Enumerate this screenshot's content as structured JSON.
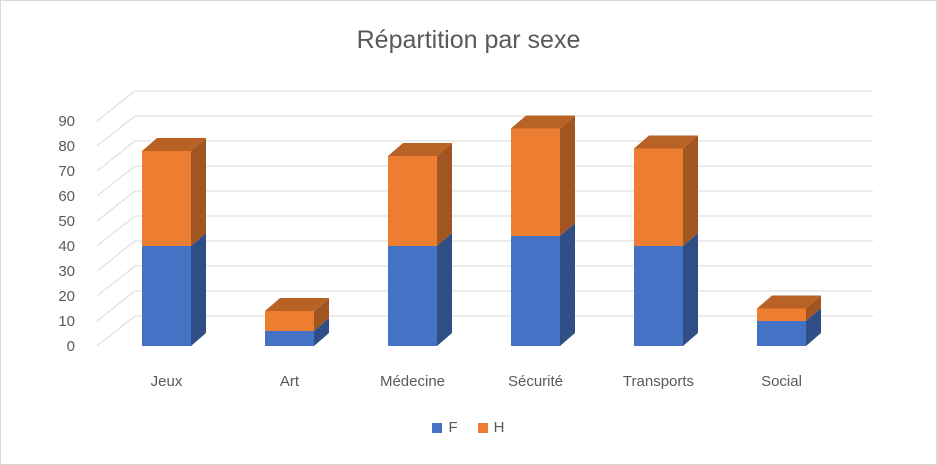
{
  "chart_data": {
    "type": "bar",
    "stacked": true,
    "style": "3d",
    "title": "Répartition par sexe",
    "categories": [
      "Jeux",
      "Art",
      "Médecine",
      "Sécurité",
      "Transports",
      "Social"
    ],
    "series": [
      {
        "name": "F",
        "color": "#4472C4",
        "values": [
          40,
          6,
          40,
          44,
          40,
          10
        ]
      },
      {
        "name": "H",
        "color": "#ED7D31",
        "values": [
          38,
          8,
          36,
          43,
          39,
          5
        ]
      }
    ],
    "ylim": [
      0,
      90
    ],
    "yticks": [
      "0",
      "10",
      "20",
      "30",
      "40",
      "50",
      "60",
      "70",
      "80",
      "90"
    ],
    "grid": true,
    "legend_position": "bottom"
  }
}
